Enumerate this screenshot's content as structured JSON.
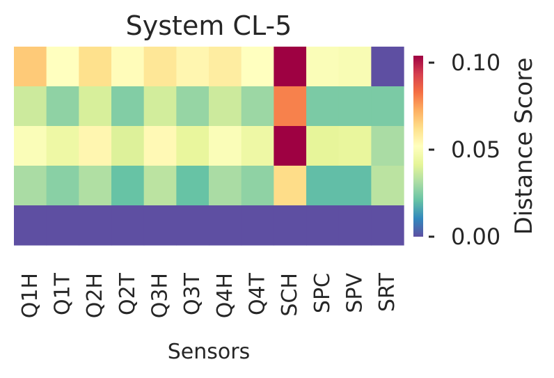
{
  "chart_data": {
    "type": "heatmap",
    "title": "System CL-5",
    "xlabel": "Sensors",
    "ylabel": "",
    "columns": [
      "Q1H",
      "Q1T",
      "Q2H",
      "Q2T",
      "Q3H",
      "Q3T",
      "Q4H",
      "Q4T",
      "SCH",
      "SPC",
      "SPV",
      "SRT"
    ],
    "row_labels": [],
    "values": [
      [
        0.067,
        0.052,
        0.062,
        0.053,
        0.06,
        0.055,
        0.058,
        0.052,
        0.108,
        0.05,
        0.049,
        0.0
      ],
      [
        0.037,
        0.027,
        0.039,
        0.025,
        0.038,
        0.028,
        0.037,
        0.029,
        0.08,
        0.024,
        0.024,
        0.024
      ],
      [
        0.05,
        0.045,
        0.055,
        0.04,
        0.054,
        0.043,
        0.05,
        0.045,
        0.108,
        0.042,
        0.043,
        0.031
      ],
      [
        0.031,
        0.026,
        0.032,
        0.021,
        0.034,
        0.021,
        0.031,
        0.027,
        0.063,
        0.02,
        0.02,
        0.034
      ],
      [
        0.0,
        0.0,
        0.0,
        0.0,
        0.0,
        0.0,
        0.0,
        0.0,
        0.0,
        0.0,
        0.0,
        0.0
      ]
    ],
    "colorbar": {
      "label": "Distance Score",
      "vmin": 0.0,
      "vmax": 0.104,
      "ticks": [
        0.0,
        0.05,
        0.1
      ],
      "tick_labels": [
        "0.00",
        "0.05",
        "0.10"
      ],
      "colormap": "Spectral_r"
    },
    "grid": false
  }
}
